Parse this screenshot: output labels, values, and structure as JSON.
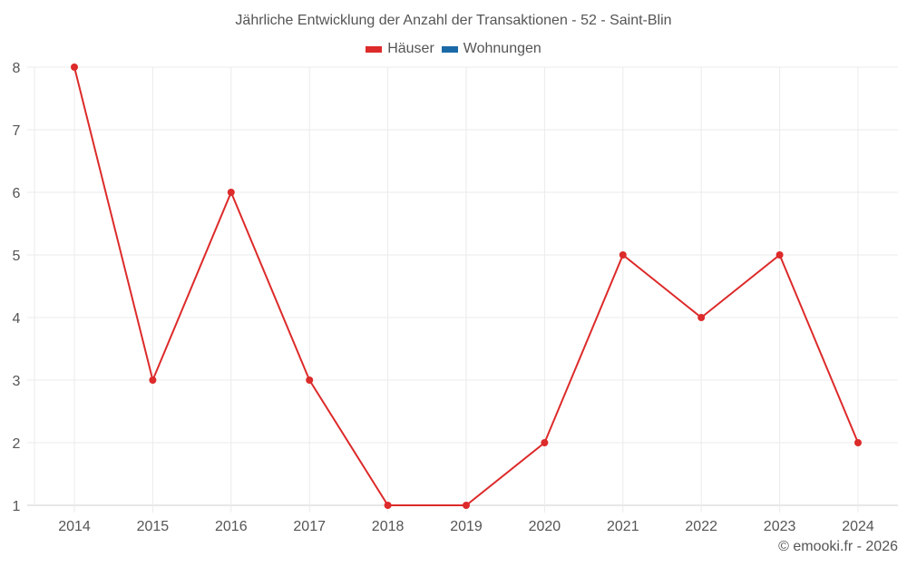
{
  "header": {
    "title": "Jährliche Entwicklung der Anzahl der Transaktionen - 52 - Saint-Blin"
  },
  "legend": [
    {
      "label": "Häuser",
      "color": "#dd2a2a"
    },
    {
      "label": "Wohnungen",
      "color": "#1a6aa8"
    }
  ],
  "footer": {
    "credit": "© emooki.fr - 2026"
  },
  "chart_data": {
    "type": "line",
    "title": "Jährliche Entwicklung der Anzahl der Transaktionen - 52 - Saint-Blin",
    "xlabel": "",
    "ylabel": "",
    "categories": [
      "2014",
      "2015",
      "2016",
      "2017",
      "2018",
      "2019",
      "2020",
      "2021",
      "2022",
      "2023",
      "2024"
    ],
    "series": [
      {
        "name": "Häuser",
        "color": "#dd2a2a",
        "values": [
          8,
          3,
          6,
          3,
          1,
          1,
          2,
          5,
          4,
          5,
          2
        ]
      },
      {
        "name": "Wohnungen",
        "color": "#1a6aa8",
        "values": []
      }
    ],
    "yticks": [
      1,
      2,
      3,
      4,
      5,
      6,
      7,
      8
    ],
    "ylim": [
      1,
      8
    ],
    "grid": true,
    "legend_position": "top"
  }
}
